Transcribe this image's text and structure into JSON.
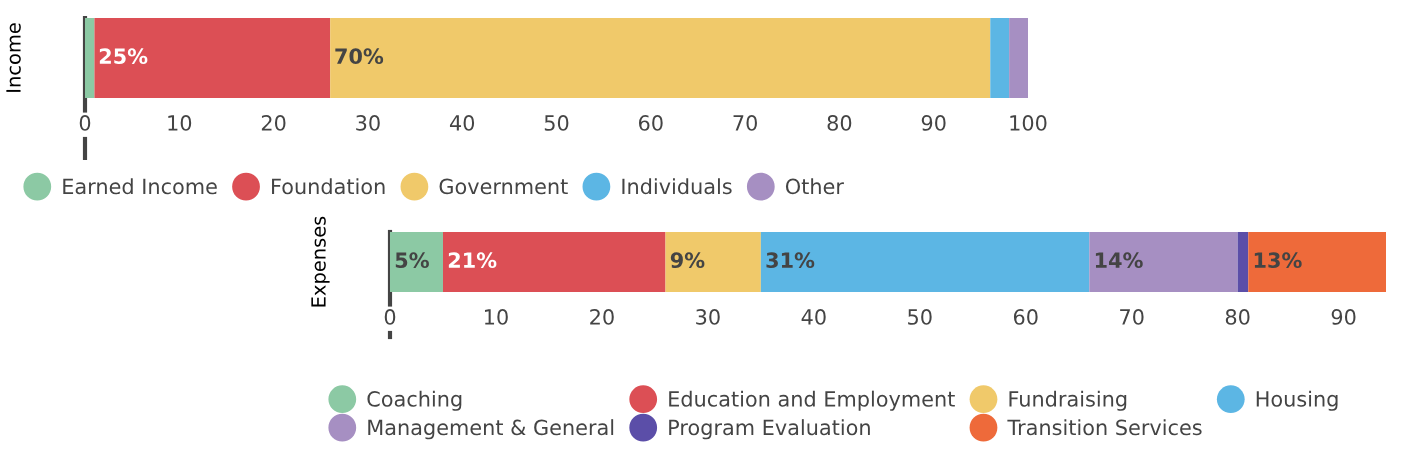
{
  "chart_data": [
    {
      "type": "bar",
      "orientation": "horizontal",
      "stacked": true,
      "ylabel": "Income",
      "categories": [
        null
      ],
      "xlim": [
        0,
        100
      ],
      "xticks": [
        0,
        10,
        20,
        30,
        40,
        50,
        60,
        70,
        80,
        90,
        100
      ],
      "grid": false,
      "legend": "bottom",
      "series": [
        {
          "name": "Earned Income",
          "color": "#8cc9a4",
          "values": [
            1
          ],
          "value_labels": [
            null
          ]
        },
        {
          "name": "Foundation",
          "color": "#dc4f55",
          "values": [
            25
          ],
          "value_labels": [
            "25%"
          ]
        },
        {
          "name": "Government",
          "color": "#f0c96a",
          "values": [
            70
          ],
          "value_labels": [
            "70%"
          ]
        },
        {
          "name": "Individuals",
          "color": "#5cb6e4",
          "values": [
            2
          ],
          "value_labels": [
            null
          ]
        },
        {
          "name": "Other",
          "color": "#a68fc2",
          "values": [
            2
          ],
          "value_labels": [
            null
          ]
        }
      ]
    },
    {
      "type": "bar",
      "orientation": "horizontal",
      "stacked": true,
      "ylabel": "Expenses",
      "categories": [
        null
      ],
      "xlim": [
        0,
        94
      ],
      "xticks": [
        0,
        10,
        20,
        30,
        40,
        50,
        60,
        70,
        80,
        90
      ],
      "grid": false,
      "legend": "bottom",
      "series": [
        {
          "name": "Coaching",
          "color": "#8cc9a4",
          "values": [
            5
          ],
          "value_labels": [
            "5%"
          ]
        },
        {
          "name": "Education and Employment",
          "color": "#dc4f55",
          "values": [
            21
          ],
          "value_labels": [
            "21%"
          ]
        },
        {
          "name": "Fundraising",
          "color": "#f0c96a",
          "values": [
            9
          ],
          "value_labels": [
            "9%"
          ]
        },
        {
          "name": "Housing",
          "color": "#5cb6e4",
          "values": [
            31
          ],
          "value_labels": [
            "31%"
          ]
        },
        {
          "name": "Management & General",
          "color": "#a68fc2",
          "values": [
            14
          ],
          "value_labels": [
            "14%"
          ]
        },
        {
          "name": "Program Evaluation",
          "color": "#5b4ea8",
          "values": [
            1
          ],
          "value_labels": [
            null
          ]
        },
        {
          "name": "Transition Services",
          "color": "#ee6a3a",
          "values": [
            13
          ],
          "value_labels": [
            "13%"
          ]
        }
      ]
    }
  ]
}
